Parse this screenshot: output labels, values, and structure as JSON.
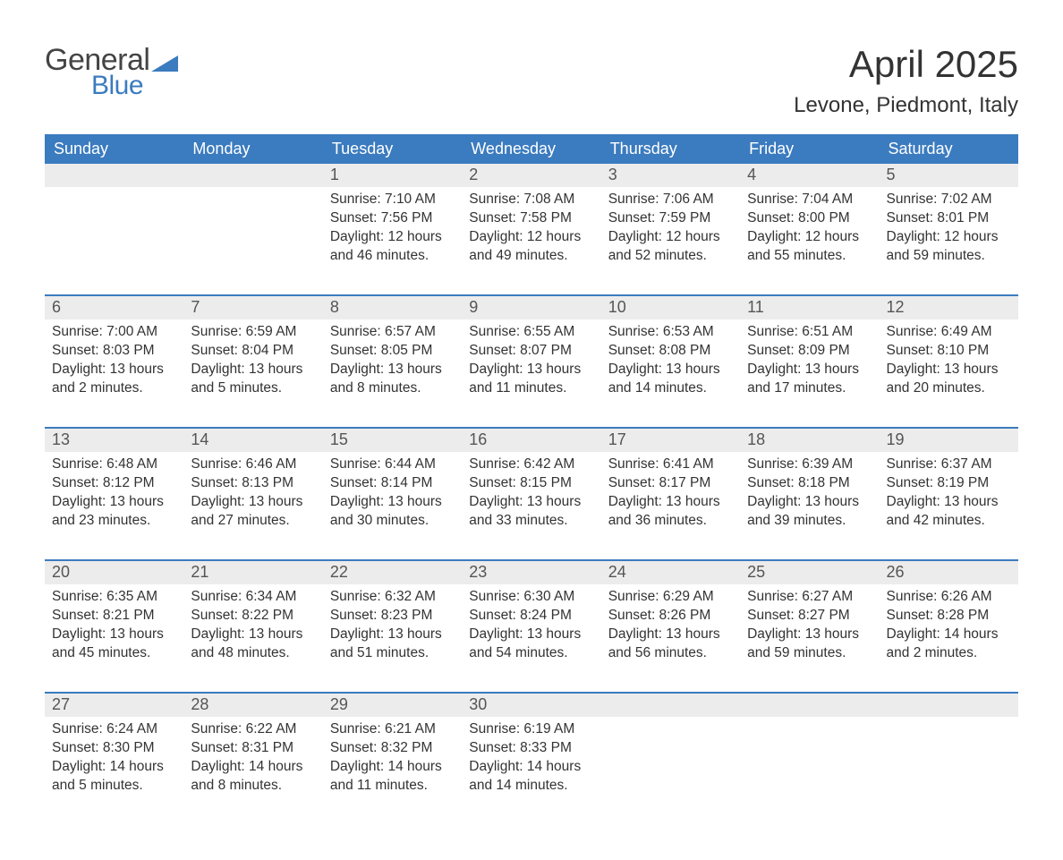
{
  "logo": {
    "text1": "General",
    "text2": "Blue",
    "shape_color": "#3b7bbf"
  },
  "title": "April 2025",
  "location": "Levone, Piedmont, Italy",
  "colors": {
    "header_bg": "#3b7bbf",
    "header_text": "#ffffff",
    "daynum_bg": "#ececec",
    "row_divider": "#3b7bbf",
    "text": "#333333"
  },
  "weekdays": [
    "Sunday",
    "Monday",
    "Tuesday",
    "Wednesday",
    "Thursday",
    "Friday",
    "Saturday"
  ],
  "weeks": [
    [
      {
        "n": "",
        "sunrise": "",
        "sunset": "",
        "daylight": ""
      },
      {
        "n": "",
        "sunrise": "",
        "sunset": "",
        "daylight": ""
      },
      {
        "n": "1",
        "sunrise": "Sunrise: 7:10 AM",
        "sunset": "Sunset: 7:56 PM",
        "daylight": "Daylight: 12 hours and 46 minutes."
      },
      {
        "n": "2",
        "sunrise": "Sunrise: 7:08 AM",
        "sunset": "Sunset: 7:58 PM",
        "daylight": "Daylight: 12 hours and 49 minutes."
      },
      {
        "n": "3",
        "sunrise": "Sunrise: 7:06 AM",
        "sunset": "Sunset: 7:59 PM",
        "daylight": "Daylight: 12 hours and 52 minutes."
      },
      {
        "n": "4",
        "sunrise": "Sunrise: 7:04 AM",
        "sunset": "Sunset: 8:00 PM",
        "daylight": "Daylight: 12 hours and 55 minutes."
      },
      {
        "n": "5",
        "sunrise": "Sunrise: 7:02 AM",
        "sunset": "Sunset: 8:01 PM",
        "daylight": "Daylight: 12 hours and 59 minutes."
      }
    ],
    [
      {
        "n": "6",
        "sunrise": "Sunrise: 7:00 AM",
        "sunset": "Sunset: 8:03 PM",
        "daylight": "Daylight: 13 hours and 2 minutes."
      },
      {
        "n": "7",
        "sunrise": "Sunrise: 6:59 AM",
        "sunset": "Sunset: 8:04 PM",
        "daylight": "Daylight: 13 hours and 5 minutes."
      },
      {
        "n": "8",
        "sunrise": "Sunrise: 6:57 AM",
        "sunset": "Sunset: 8:05 PM",
        "daylight": "Daylight: 13 hours and 8 minutes."
      },
      {
        "n": "9",
        "sunrise": "Sunrise: 6:55 AM",
        "sunset": "Sunset: 8:07 PM",
        "daylight": "Daylight: 13 hours and 11 minutes."
      },
      {
        "n": "10",
        "sunrise": "Sunrise: 6:53 AM",
        "sunset": "Sunset: 8:08 PM",
        "daylight": "Daylight: 13 hours and 14 minutes."
      },
      {
        "n": "11",
        "sunrise": "Sunrise: 6:51 AM",
        "sunset": "Sunset: 8:09 PM",
        "daylight": "Daylight: 13 hours and 17 minutes."
      },
      {
        "n": "12",
        "sunrise": "Sunrise: 6:49 AM",
        "sunset": "Sunset: 8:10 PM",
        "daylight": "Daylight: 13 hours and 20 minutes."
      }
    ],
    [
      {
        "n": "13",
        "sunrise": "Sunrise: 6:48 AM",
        "sunset": "Sunset: 8:12 PM",
        "daylight": "Daylight: 13 hours and 23 minutes."
      },
      {
        "n": "14",
        "sunrise": "Sunrise: 6:46 AM",
        "sunset": "Sunset: 8:13 PM",
        "daylight": "Daylight: 13 hours and 27 minutes."
      },
      {
        "n": "15",
        "sunrise": "Sunrise: 6:44 AM",
        "sunset": "Sunset: 8:14 PM",
        "daylight": "Daylight: 13 hours and 30 minutes."
      },
      {
        "n": "16",
        "sunrise": "Sunrise: 6:42 AM",
        "sunset": "Sunset: 8:15 PM",
        "daylight": "Daylight: 13 hours and 33 minutes."
      },
      {
        "n": "17",
        "sunrise": "Sunrise: 6:41 AM",
        "sunset": "Sunset: 8:17 PM",
        "daylight": "Daylight: 13 hours and 36 minutes."
      },
      {
        "n": "18",
        "sunrise": "Sunrise: 6:39 AM",
        "sunset": "Sunset: 8:18 PM",
        "daylight": "Daylight: 13 hours and 39 minutes."
      },
      {
        "n": "19",
        "sunrise": "Sunrise: 6:37 AM",
        "sunset": "Sunset: 8:19 PM",
        "daylight": "Daylight: 13 hours and 42 minutes."
      }
    ],
    [
      {
        "n": "20",
        "sunrise": "Sunrise: 6:35 AM",
        "sunset": "Sunset: 8:21 PM",
        "daylight": "Daylight: 13 hours and 45 minutes."
      },
      {
        "n": "21",
        "sunrise": "Sunrise: 6:34 AM",
        "sunset": "Sunset: 8:22 PM",
        "daylight": "Daylight: 13 hours and 48 minutes."
      },
      {
        "n": "22",
        "sunrise": "Sunrise: 6:32 AM",
        "sunset": "Sunset: 8:23 PM",
        "daylight": "Daylight: 13 hours and 51 minutes."
      },
      {
        "n": "23",
        "sunrise": "Sunrise: 6:30 AM",
        "sunset": "Sunset: 8:24 PM",
        "daylight": "Daylight: 13 hours and 54 minutes."
      },
      {
        "n": "24",
        "sunrise": "Sunrise: 6:29 AM",
        "sunset": "Sunset: 8:26 PM",
        "daylight": "Daylight: 13 hours and 56 minutes."
      },
      {
        "n": "25",
        "sunrise": "Sunrise: 6:27 AM",
        "sunset": "Sunset: 8:27 PM",
        "daylight": "Daylight: 13 hours and 59 minutes."
      },
      {
        "n": "26",
        "sunrise": "Sunrise: 6:26 AM",
        "sunset": "Sunset: 8:28 PM",
        "daylight": "Daylight: 14 hours and 2 minutes."
      }
    ],
    [
      {
        "n": "27",
        "sunrise": "Sunrise: 6:24 AM",
        "sunset": "Sunset: 8:30 PM",
        "daylight": "Daylight: 14 hours and 5 minutes."
      },
      {
        "n": "28",
        "sunrise": "Sunrise: 6:22 AM",
        "sunset": "Sunset: 8:31 PM",
        "daylight": "Daylight: 14 hours and 8 minutes."
      },
      {
        "n": "29",
        "sunrise": "Sunrise: 6:21 AM",
        "sunset": "Sunset: 8:32 PM",
        "daylight": "Daylight: 14 hours and 11 minutes."
      },
      {
        "n": "30",
        "sunrise": "Sunrise: 6:19 AM",
        "sunset": "Sunset: 8:33 PM",
        "daylight": "Daylight: 14 hours and 14 minutes."
      },
      {
        "n": "",
        "sunrise": "",
        "sunset": "",
        "daylight": ""
      },
      {
        "n": "",
        "sunrise": "",
        "sunset": "",
        "daylight": ""
      },
      {
        "n": "",
        "sunrise": "",
        "sunset": "",
        "daylight": ""
      }
    ]
  ]
}
